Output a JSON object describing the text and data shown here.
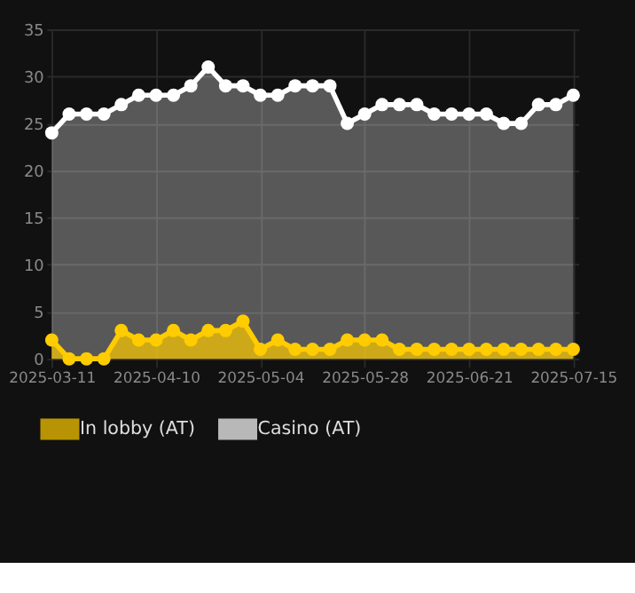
{
  "chart_data": {
    "type": "area",
    "categories": [
      "2025-03-11",
      null,
      null,
      null,
      null,
      null,
      "2025-04-10",
      null,
      null,
      null,
      null,
      null,
      "2025-05-04",
      null,
      null,
      null,
      null,
      null,
      "2025-05-28",
      null,
      null,
      null,
      null,
      null,
      "2025-06-21",
      null,
      null,
      null,
      null,
      null,
      "2025-07-15"
    ],
    "series": [
      {
        "name": "Casino (AT)",
        "color": "#ffffff",
        "values": [
          24,
          26,
          26,
          26,
          27,
          28,
          28,
          28,
          29,
          31,
          29,
          29,
          28,
          28,
          29,
          29,
          29,
          25,
          26,
          27,
          27,
          27,
          26,
          26,
          26,
          26,
          25,
          25,
          27,
          27,
          28
        ]
      },
      {
        "name": "In lobby (AT)",
        "color": "#ffcc00",
        "values": [
          2,
          0,
          0,
          0,
          3,
          2,
          2,
          3,
          2,
          3,
          3,
          4,
          1,
          2,
          1,
          1,
          1,
          2,
          2,
          2,
          1,
          1,
          1,
          1,
          1,
          1,
          1,
          1,
          1,
          1,
          1
        ]
      }
    ],
    "ylim": [
      0,
      35
    ],
    "yticks": [
      0,
      5,
      10,
      15,
      20,
      25,
      30,
      35
    ],
    "grid": true,
    "legend": "bottom",
    "marker": "circle"
  }
}
